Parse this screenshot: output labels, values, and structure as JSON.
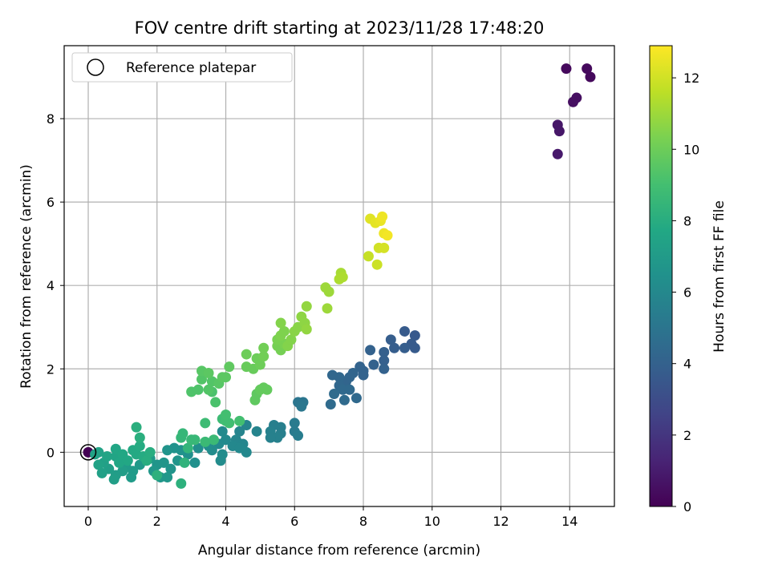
{
  "chart_data": {
    "type": "scatter",
    "title": "FOV centre drift starting at 2023/11/28 17:48:20",
    "xlabel": "Angular distance from reference (arcmin)",
    "ylabel": "Rotation from reference (arcmin)",
    "xlim": [
      -0.7,
      15.3
    ],
    "ylim": [
      -1.3,
      9.75
    ],
    "xticks": [
      0,
      2,
      4,
      6,
      8,
      10,
      12,
      14
    ],
    "yticks": [
      0,
      2,
      4,
      6,
      8
    ],
    "grid": true,
    "legend": {
      "entries": [
        "Reference platepar"
      ],
      "placement": "upper-left"
    },
    "colorbar": {
      "label": "Hours from first FF file",
      "range": [
        0,
        12.9
      ],
      "ticks": [
        0,
        2,
        4,
        6,
        8,
        10,
        12
      ],
      "colormap": "viridis"
    },
    "reference_point": {
      "x": 0,
      "y": 0
    },
    "points": [
      {
        "x": 13.9,
        "y": 9.2,
        "c": 0.3
      },
      {
        "x": 14.5,
        "y": 9.2,
        "c": 0.3
      },
      {
        "x": 14.6,
        "y": 9.0,
        "c": 0.3
      },
      {
        "x": 14.2,
        "y": 8.5,
        "c": 0.5
      },
      {
        "x": 14.1,
        "y": 8.4,
        "c": 0.5
      },
      {
        "x": 13.65,
        "y": 7.85,
        "c": 0.8
      },
      {
        "x": 13.7,
        "y": 7.7,
        "c": 0.8
      },
      {
        "x": 13.65,
        "y": 7.15,
        "c": 0.9
      },
      {
        "x": 0.0,
        "y": 0.0,
        "c": 0.0
      },
      {
        "x": 9.5,
        "y": 2.8,
        "c": 3.6
      },
      {
        "x": 9.2,
        "y": 2.9,
        "c": 3.7
      },
      {
        "x": 9.5,
        "y": 2.5,
        "c": 3.7
      },
      {
        "x": 9.4,
        "y": 2.6,
        "c": 3.7
      },
      {
        "x": 9.2,
        "y": 2.5,
        "c": 3.8
      },
      {
        "x": 8.8,
        "y": 2.7,
        "c": 3.8
      },
      {
        "x": 8.9,
        "y": 2.5,
        "c": 3.8
      },
      {
        "x": 8.6,
        "y": 2.4,
        "c": 3.9
      },
      {
        "x": 8.6,
        "y": 2.2,
        "c": 3.9
      },
      {
        "x": 8.6,
        "y": 2.0,
        "c": 4.0
      },
      {
        "x": 8.2,
        "y": 2.45,
        "c": 4.0
      },
      {
        "x": 8.3,
        "y": 2.1,
        "c": 4.0
      },
      {
        "x": 8.0,
        "y": 1.95,
        "c": 4.1
      },
      {
        "x": 8.0,
        "y": 1.85,
        "c": 4.1
      },
      {
        "x": 7.9,
        "y": 2.05,
        "c": 4.1
      },
      {
        "x": 7.7,
        "y": 1.9,
        "c": 4.2
      },
      {
        "x": 7.6,
        "y": 1.8,
        "c": 4.2
      },
      {
        "x": 7.5,
        "y": 1.7,
        "c": 4.2
      },
      {
        "x": 7.3,
        "y": 1.8,
        "c": 4.3
      },
      {
        "x": 7.1,
        "y": 1.85,
        "c": 4.3
      },
      {
        "x": 7.3,
        "y": 1.6,
        "c": 4.3
      },
      {
        "x": 7.4,
        "y": 1.5,
        "c": 4.4
      },
      {
        "x": 7.6,
        "y": 1.5,
        "c": 4.4
      },
      {
        "x": 7.8,
        "y": 1.3,
        "c": 4.4
      },
      {
        "x": 7.45,
        "y": 1.25,
        "c": 4.5
      },
      {
        "x": 7.15,
        "y": 1.4,
        "c": 4.5
      },
      {
        "x": 7.05,
        "y": 1.15,
        "c": 4.5
      },
      {
        "x": 6.25,
        "y": 1.2,
        "c": 5.0
      },
      {
        "x": 6.1,
        "y": 1.2,
        "c": 5.0
      },
      {
        "x": 6.2,
        "y": 1.1,
        "c": 5.1
      },
      {
        "x": 6.0,
        "y": 0.7,
        "c": 5.3
      },
      {
        "x": 6.0,
        "y": 0.5,
        "c": 5.3
      },
      {
        "x": 6.1,
        "y": 0.4,
        "c": 5.4
      },
      {
        "x": 5.6,
        "y": 0.6,
        "c": 5.5
      },
      {
        "x": 5.4,
        "y": 0.65,
        "c": 5.5
      },
      {
        "x": 5.6,
        "y": 0.45,
        "c": 5.5
      },
      {
        "x": 5.3,
        "y": 0.5,
        "c": 5.6
      },
      {
        "x": 5.5,
        "y": 0.35,
        "c": 5.6
      },
      {
        "x": 5.3,
        "y": 0.35,
        "c": 5.6
      },
      {
        "x": 4.9,
        "y": 0.5,
        "c": 5.8
      },
      {
        "x": 4.6,
        "y": 0.65,
        "c": 5.8
      },
      {
        "x": 4.4,
        "y": 0.5,
        "c": 5.8
      },
      {
        "x": 4.3,
        "y": 0.3,
        "c": 5.9
      },
      {
        "x": 4.5,
        "y": 0.2,
        "c": 5.9
      },
      {
        "x": 4.2,
        "y": 0.15,
        "c": 6.0
      },
      {
        "x": 4.4,
        "y": 0.1,
        "c": 6.0
      },
      {
        "x": 4.6,
        "y": 0.0,
        "c": 6.0
      },
      {
        "x": 3.9,
        "y": 0.5,
        "c": 6.1
      },
      {
        "x": 4.0,
        "y": 0.3,
        "c": 6.1
      },
      {
        "x": 3.8,
        "y": 0.2,
        "c": 6.1
      },
      {
        "x": 3.6,
        "y": 0.05,
        "c": 6.2
      },
      {
        "x": 3.9,
        "y": -0.05,
        "c": 6.2
      },
      {
        "x": 3.85,
        "y": -0.2,
        "c": 6.2
      },
      {
        "x": 3.5,
        "y": 0.15,
        "c": 6.3
      },
      {
        "x": 3.2,
        "y": 0.1,
        "c": 6.3
      },
      {
        "x": 3.1,
        "y": -0.25,
        "c": 6.4
      },
      {
        "x": 2.9,
        "y": -0.05,
        "c": 6.4
      },
      {
        "x": 2.7,
        "y": 0.05,
        "c": 6.5
      },
      {
        "x": 2.5,
        "y": 0.1,
        "c": 6.5
      },
      {
        "x": 2.3,
        "y": 0.05,
        "c": 6.6
      },
      {
        "x": 2.6,
        "y": -0.2,
        "c": 6.6
      },
      {
        "x": 2.4,
        "y": -0.4,
        "c": 6.6
      },
      {
        "x": 2.2,
        "y": -0.25,
        "c": 6.7
      },
      {
        "x": 2.0,
        "y": -0.3,
        "c": 6.7
      },
      {
        "x": 2.3,
        "y": -0.6,
        "c": 6.8
      },
      {
        "x": 2.1,
        "y": -0.6,
        "c": 6.8
      },
      {
        "x": 1.9,
        "y": -0.45,
        "c": 6.8
      },
      {
        "x": 1.8,
        "y": -0.15,
        "c": 6.9
      },
      {
        "x": 1.5,
        "y": -0.3,
        "c": 6.9
      },
      {
        "x": 1.3,
        "y": -0.45,
        "c": 7.0
      },
      {
        "x": 1.25,
        "y": -0.6,
        "c": 7.0
      },
      {
        "x": 1.1,
        "y": -0.35,
        "c": 7.0
      },
      {
        "x": 1.0,
        "y": -0.45,
        "c": 7.1
      },
      {
        "x": 0.8,
        "y": -0.55,
        "c": 7.1
      },
      {
        "x": 0.75,
        "y": -0.65,
        "c": 7.2
      },
      {
        "x": 0.6,
        "y": -0.4,
        "c": 7.2
      },
      {
        "x": 0.45,
        "y": -0.25,
        "c": 7.3
      },
      {
        "x": 0.4,
        "y": -0.5,
        "c": 7.3
      },
      {
        "x": 0.3,
        "y": -0.3,
        "c": 7.4
      },
      {
        "x": 0.2,
        "y": -0.05,
        "c": 7.4
      },
      {
        "x": 0.3,
        "y": 0.0,
        "c": 7.4
      },
      {
        "x": 0.55,
        "y": -0.1,
        "c": 7.5
      },
      {
        "x": 0.8,
        "y": -0.1,
        "c": 7.5
      },
      {
        "x": 0.8,
        "y": 0.08,
        "c": 7.6
      },
      {
        "x": 0.9,
        "y": -0.25,
        "c": 7.6
      },
      {
        "x": 1.0,
        "y": -0.05,
        "c": 7.7
      },
      {
        "x": 1.15,
        "y": -0.2,
        "c": 7.7
      },
      {
        "x": 1.3,
        "y": 0.05,
        "c": 7.8
      },
      {
        "x": 1.4,
        "y": -0.05,
        "c": 7.8
      },
      {
        "x": 1.5,
        "y": 0.15,
        "c": 7.9
      },
      {
        "x": 1.6,
        "y": -0.1,
        "c": 7.9
      },
      {
        "x": 1.7,
        "y": -0.2,
        "c": 8.0
      },
      {
        "x": 1.8,
        "y": 0.0,
        "c": 8.0
      },
      {
        "x": 1.5,
        "y": 0.35,
        "c": 8.1
      },
      {
        "x": 1.4,
        "y": 0.6,
        "c": 8.1
      },
      {
        "x": 2.0,
        "y": -0.55,
        "c": 8.2
      },
      {
        "x": 2.7,
        "y": -0.75,
        "c": 8.2
      },
      {
        "x": 2.8,
        "y": -0.25,
        "c": 8.3
      },
      {
        "x": 2.9,
        "y": 0.1,
        "c": 8.4
      },
      {
        "x": 2.7,
        "y": 0.35,
        "c": 8.5
      },
      {
        "x": 2.75,
        "y": 0.45,
        "c": 8.5
      },
      {
        "x": 3.0,
        "y": 0.3,
        "c": 8.6
      },
      {
        "x": 3.1,
        "y": 0.3,
        "c": 8.6
      },
      {
        "x": 3.4,
        "y": 0.25,
        "c": 8.7
      },
      {
        "x": 3.65,
        "y": 0.3,
        "c": 8.7
      },
      {
        "x": 3.4,
        "y": 0.7,
        "c": 8.8
      },
      {
        "x": 3.9,
        "y": 0.8,
        "c": 8.8
      },
      {
        "x": 4.0,
        "y": 0.75,
        "c": 8.9
      },
      {
        "x": 4.1,
        "y": 0.7,
        "c": 8.9
      },
      {
        "x": 4.4,
        "y": 0.75,
        "c": 9.0
      },
      {
        "x": 4.0,
        "y": 0.9,
        "c": 9.0
      },
      {
        "x": 3.7,
        "y": 1.2,
        "c": 9.2
      },
      {
        "x": 3.6,
        "y": 1.45,
        "c": 9.2
      },
      {
        "x": 3.0,
        "y": 1.45,
        "c": 9.3
      },
      {
        "x": 3.2,
        "y": 1.5,
        "c": 9.3
      },
      {
        "x": 3.5,
        "y": 1.5,
        "c": 9.4
      },
      {
        "x": 3.3,
        "y": 1.75,
        "c": 9.4
      },
      {
        "x": 3.6,
        "y": 1.7,
        "c": 9.4
      },
      {
        "x": 3.8,
        "y": 1.65,
        "c": 9.5
      },
      {
        "x": 3.3,
        "y": 1.95,
        "c": 9.5
      },
      {
        "x": 3.5,
        "y": 1.9,
        "c": 9.6
      },
      {
        "x": 3.9,
        "y": 1.8,
        "c": 9.6
      },
      {
        "x": 4.0,
        "y": 1.8,
        "c": 9.6
      },
      {
        "x": 4.1,
        "y": 2.05,
        "c": 9.7
      },
      {
        "x": 4.85,
        "y": 1.25,
        "c": 9.7
      },
      {
        "x": 4.9,
        "y": 1.4,
        "c": 9.7
      },
      {
        "x": 5.0,
        "y": 1.5,
        "c": 9.8
      },
      {
        "x": 5.1,
        "y": 1.55,
        "c": 9.8
      },
      {
        "x": 5.2,
        "y": 1.5,
        "c": 9.8
      },
      {
        "x": 4.6,
        "y": 2.05,
        "c": 9.9
      },
      {
        "x": 4.8,
        "y": 2.0,
        "c": 9.9
      },
      {
        "x": 4.6,
        "y": 2.35,
        "c": 10.0
      },
      {
        "x": 4.9,
        "y": 2.25,
        "c": 10.0
      },
      {
        "x": 5.0,
        "y": 2.1,
        "c": 10.0
      },
      {
        "x": 5.1,
        "y": 2.3,
        "c": 10.1
      },
      {
        "x": 5.1,
        "y": 2.5,
        "c": 10.1
      },
      {
        "x": 5.5,
        "y": 2.55,
        "c": 10.2
      },
      {
        "x": 5.6,
        "y": 2.45,
        "c": 10.2
      },
      {
        "x": 5.7,
        "y": 2.6,
        "c": 10.3
      },
      {
        "x": 5.5,
        "y": 2.7,
        "c": 10.3
      },
      {
        "x": 5.6,
        "y": 2.8,
        "c": 10.4
      },
      {
        "x": 5.7,
        "y": 2.9,
        "c": 10.4
      },
      {
        "x": 5.8,
        "y": 2.55,
        "c": 10.5
      },
      {
        "x": 5.9,
        "y": 2.7,
        "c": 10.5
      },
      {
        "x": 5.6,
        "y": 3.1,
        "c": 10.5
      },
      {
        "x": 6.0,
        "y": 2.9,
        "c": 10.6
      },
      {
        "x": 6.1,
        "y": 3.0,
        "c": 10.6
      },
      {
        "x": 6.2,
        "y": 3.25,
        "c": 10.7
      },
      {
        "x": 6.3,
        "y": 3.1,
        "c": 10.7
      },
      {
        "x": 6.35,
        "y": 2.95,
        "c": 10.8
      },
      {
        "x": 6.35,
        "y": 3.5,
        "c": 10.8
      },
      {
        "x": 6.9,
        "y": 3.95,
        "c": 11.0
      },
      {
        "x": 7.0,
        "y": 3.85,
        "c": 11.0
      },
      {
        "x": 6.95,
        "y": 3.45,
        "c": 11.0
      },
      {
        "x": 7.35,
        "y": 4.3,
        "c": 11.2
      },
      {
        "x": 7.4,
        "y": 4.2,
        "c": 11.3
      },
      {
        "x": 7.3,
        "y": 4.15,
        "c": 11.3
      },
      {
        "x": 8.15,
        "y": 4.7,
        "c": 11.8
      },
      {
        "x": 8.4,
        "y": 4.5,
        "c": 11.9
      },
      {
        "x": 8.45,
        "y": 4.9,
        "c": 12.0
      },
      {
        "x": 8.6,
        "y": 4.9,
        "c": 12.1
      },
      {
        "x": 8.2,
        "y": 5.6,
        "c": 12.3
      },
      {
        "x": 8.35,
        "y": 5.5,
        "c": 12.4
      },
      {
        "x": 8.5,
        "y": 5.55,
        "c": 12.5
      },
      {
        "x": 8.55,
        "y": 5.65,
        "c": 12.6
      },
      {
        "x": 8.6,
        "y": 5.25,
        "c": 12.6
      },
      {
        "x": 8.7,
        "y": 5.2,
        "c": 12.7
      }
    ]
  }
}
